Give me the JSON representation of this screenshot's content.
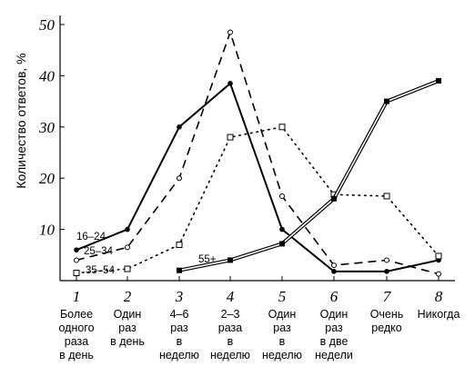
{
  "chart_data": {
    "type": "line",
    "ylabel": "Количество ответов, %",
    "ylim": [
      0,
      50
    ],
    "yticks": [
      10,
      20,
      30,
      40,
      50
    ],
    "x": [
      1,
      2,
      3,
      4,
      5,
      6,
      7,
      8
    ],
    "categories": [
      {
        "num": "1",
        "lines": [
          "Более",
          "одного",
          "раза",
          "в день"
        ]
      },
      {
        "num": "2",
        "lines": [
          "Один",
          "раз",
          "в день"
        ]
      },
      {
        "num": "3",
        "lines": [
          "4–6",
          "раз",
          "в",
          "неделю"
        ]
      },
      {
        "num": "4",
        "lines": [
          "2–3",
          "раза",
          "в",
          "неделю"
        ]
      },
      {
        "num": "5",
        "lines": [
          "Один",
          "раз",
          "в",
          "неделю"
        ]
      },
      {
        "num": "6",
        "lines": [
          "Один",
          "раз",
          "в две",
          "недели"
        ]
      },
      {
        "num": "7",
        "lines": [
          "Очень",
          "редко"
        ]
      },
      {
        "num": "8",
        "lines": [
          "Никогда"
        ]
      }
    ],
    "series": [
      {
        "name": "16–24",
        "style": "solid",
        "marker": "filled-circle",
        "x": [
          1,
          2,
          3,
          4,
          5,
          6,
          7,
          8
        ],
        "values": [
          6,
          10,
          30,
          38.5,
          10,
          1.8,
          1.8,
          4
        ]
      },
      {
        "name": "25–34",
        "style": "dashed",
        "marker": "open-circle",
        "x": [
          1,
          2,
          3,
          4,
          5,
          6,
          7,
          8
        ],
        "values": [
          4,
          6.5,
          20,
          48.5,
          16.5,
          3,
          4,
          1.3
        ]
      },
      {
        "name": "35–54",
        "style": "dotted",
        "marker": "open-square",
        "x": [
          1,
          2,
          3,
          4,
          5,
          6,
          7,
          8
        ],
        "values": [
          1.5,
          2.3,
          7,
          28,
          30,
          16.8,
          16.5,
          4.8
        ]
      },
      {
        "name": "55+",
        "style": "double",
        "marker": "filled-square",
        "x": [
          3,
          4,
          5,
          6,
          7,
          8
        ],
        "values": [
          2,
          4,
          7.2,
          16,
          35,
          39
        ]
      }
    ]
  }
}
